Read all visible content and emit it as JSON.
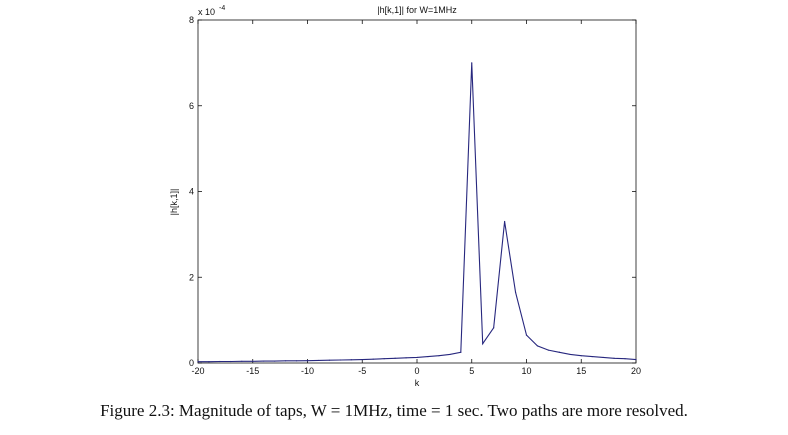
{
  "chart_data": {
    "type": "line",
    "title": "|h[k,1]| for W=1MHz",
    "xlabel": "k",
    "ylabel": "|h[k,1]|",
    "y_multiplier_label": "x 10",
    "y_multiplier_exponent": "-4",
    "xlim": [
      -20,
      20
    ],
    "ylim": [
      0,
      8
    ],
    "x_ticks": [
      -20,
      -15,
      -10,
      -5,
      0,
      5,
      10,
      15,
      20
    ],
    "x_tick_labels": [
      "-20",
      "-15",
      "-10",
      "-5",
      "0",
      "5",
      "10",
      "15",
      "20"
    ],
    "y_ticks": [
      0,
      2,
      4,
      6,
      8
    ],
    "y_tick_labels": [
      "0",
      "2",
      "4",
      "6",
      "8"
    ],
    "grid": false,
    "series": [
      {
        "color": "#27277e",
        "x": [
          -20,
          -19,
          -18,
          -17,
          -16,
          -15,
          -14,
          -13,
          -12,
          -11,
          -10,
          -9,
          -8,
          -7,
          -6,
          -5,
          -4,
          -3,
          -2,
          -1,
          0,
          1,
          2,
          3,
          4,
          5,
          6,
          7,
          8,
          9,
          10,
          11,
          12,
          13,
          14,
          15,
          16,
          17,
          18,
          19,
          20
        ],
        "y": [
          0.03,
          0.03,
          0.035,
          0.035,
          0.04,
          0.04,
          0.045,
          0.045,
          0.05,
          0.05,
          0.055,
          0.06,
          0.065,
          0.07,
          0.075,
          0.08,
          0.09,
          0.1,
          0.11,
          0.12,
          0.13,
          0.15,
          0.17,
          0.2,
          0.25,
          7.0,
          0.45,
          0.82,
          3.3,
          1.65,
          0.65,
          0.4,
          0.3,
          0.25,
          0.2,
          0.17,
          0.15,
          0.13,
          0.11,
          0.1,
          0.08
        ]
      }
    ]
  },
  "caption": "Figure 2.3: Magnitude of taps, W = 1MHz, time = 1 sec. Two paths are more resolved."
}
